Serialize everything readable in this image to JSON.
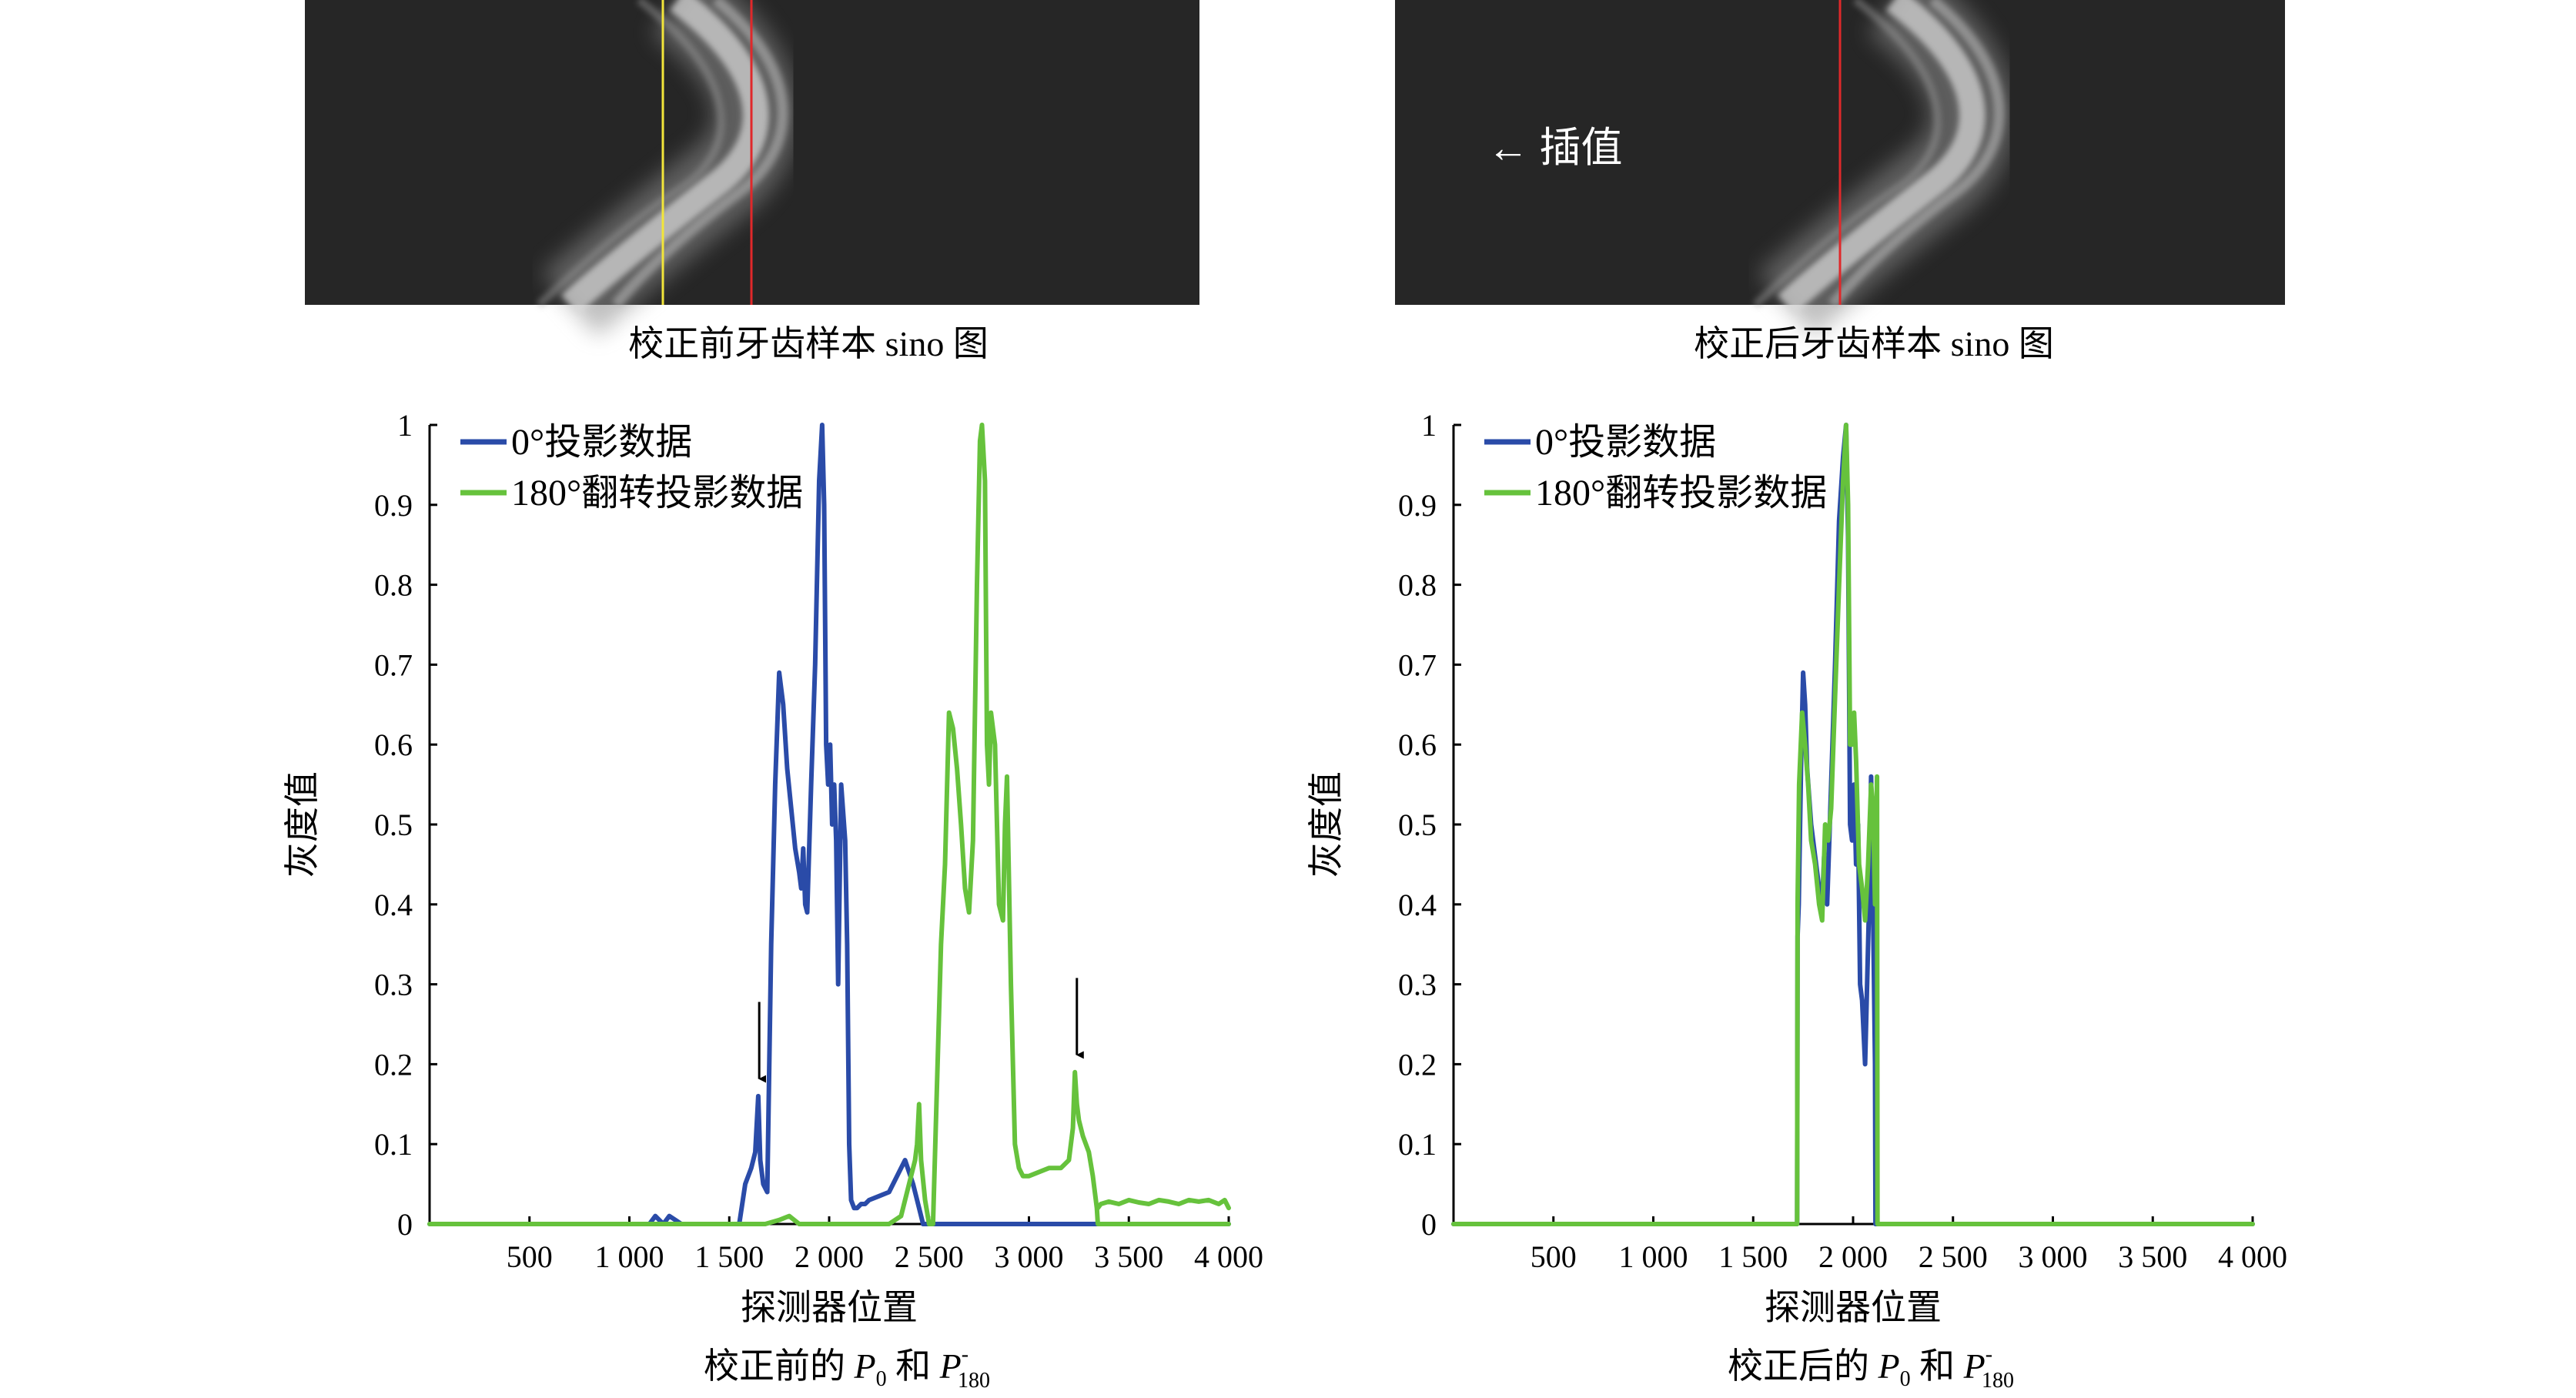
{
  "colors": {
    "blue": "#2a4ba8",
    "green": "#66c23c",
    "sino_bg": "#262626",
    "yellow_line": "#f2e53a",
    "red_line": "#e0282a"
  },
  "panels": {
    "left_image": {
      "caption": "校正前牙齿样本 sino 图"
    },
    "right_image": {
      "caption": "校正后牙齿样本 sino 图",
      "annotation": "← 插值"
    },
    "left_chart": {
      "caption_prefix": "校正前的 ",
      "caption_mid": " 和 "
    },
    "right_chart": {
      "caption_prefix": "校正后的 ",
      "caption_mid": " 和 "
    },
    "math": {
      "p": "P",
      "sub0": "0",
      "sup": "-",
      "sub180": "180"
    }
  },
  "chart_data": [
    {
      "type": "line",
      "xlabel": "探测器位置",
      "ylabel": "灰度值",
      "xlim": [
        0,
        4000
      ],
      "ylim": [
        0,
        1
      ],
      "xticks": [
        500,
        1000,
        1500,
        2000,
        2500,
        3000,
        3500,
        4000
      ],
      "xtick_labels": [
        "500",
        "1 000",
        "1 500",
        "2 000",
        "2 500",
        "3 000",
        "3 500",
        "4 000"
      ],
      "yticks": [
        0,
        0.1,
        0.2,
        0.3,
        0.4,
        0.5,
        0.6,
        0.7,
        0.8,
        0.9,
        1
      ],
      "ytick_labels": [
        "0",
        "0.1",
        "0.2",
        "0.3",
        "0.4",
        "0.5",
        "0.6",
        "0.7",
        "0.8",
        "0.9",
        "1"
      ],
      "legend_position": "top-left",
      "annotations": [
        {
          "type": "arrow",
          "x": 1650,
          "y": 0.17
        },
        {
          "type": "arrow",
          "x": 3240,
          "y": 0.2
        }
      ],
      "series": [
        {
          "name": "0°投影数据",
          "color": "#2a4ba8",
          "x": [
            0,
            1100,
            1130,
            1170,
            1200,
            1230,
            1260,
            1550,
            1580,
            1610,
            1630,
            1645,
            1655,
            1670,
            1690,
            1710,
            1730,
            1750,
            1770,
            1790,
            1810,
            1830,
            1850,
            1860,
            1870,
            1880,
            1890,
            1910,
            1930,
            1950,
            1965,
            1975,
            1985,
            1995,
            2005,
            2015,
            2025,
            2035,
            2045,
            2060,
            2080,
            2090,
            2100,
            2110,
            2125,
            2140,
            2160,
            2180,
            2200,
            2300,
            2380,
            2420,
            2450,
            2470,
            2490,
            2500,
            2600,
            4000
          ],
          "y": [
            0,
            0,
            0.01,
            0,
            0.01,
            0.005,
            0,
            0,
            0.05,
            0.07,
            0.09,
            0.16,
            0.08,
            0.05,
            0.04,
            0.35,
            0.55,
            0.69,
            0.65,
            0.57,
            0.52,
            0.47,
            0.44,
            0.42,
            0.47,
            0.4,
            0.39,
            0.55,
            0.7,
            0.93,
            1.0,
            0.9,
            0.6,
            0.55,
            0.6,
            0.5,
            0.55,
            0.48,
            0.3,
            0.55,
            0.48,
            0.35,
            0.1,
            0.03,
            0.02,
            0.02,
            0.025,
            0.025,
            0.03,
            0.04,
            0.08,
            0.05,
            0.02,
            0,
            0,
            0,
            0,
            0
          ]
        },
        {
          "name": "180°翻转投影数据",
          "color": "#66c23c",
          "x": [
            0,
            1680,
            1750,
            1800,
            1850,
            2300,
            2360,
            2400,
            2430,
            2440,
            2450,
            2460,
            2480,
            2500,
            2510,
            2520,
            2560,
            2580,
            2600,
            2620,
            2640,
            2660,
            2680,
            2700,
            2720,
            2740,
            2755,
            2765,
            2780,
            2790,
            2800,
            2810,
            2830,
            2850,
            2870,
            2880,
            2890,
            2910,
            2930,
            2950,
            2970,
            3000,
            3100,
            3160,
            3200,
            3220,
            3230,
            3240,
            3250,
            3270,
            3300,
            3320,
            3330,
            3340,
            3345,
            3350,
            3400,
            3500,
            3600,
            3700,
            3800,
            3900,
            3950,
            3990,
            4000
          ],
          "y": [
            0,
            0,
            0.005,
            0.01,
            0,
            0,
            0.01,
            0.05,
            0.08,
            0.1,
            0.15,
            0.08,
            0.03,
            0,
            0,
            0,
            0.35,
            0.45,
            0.64,
            0.62,
            0.57,
            0.5,
            0.42,
            0.39,
            0.48,
            0.8,
            0.98,
            1.0,
            0.93,
            0.6,
            0.55,
            0.64,
            0.6,
            0.4,
            0.38,
            0.5,
            0.56,
            0.3,
            0.1,
            0.07,
            0.06,
            0.06,
            0.07,
            0.07,
            0.08,
            0.12,
            0.19,
            0.15,
            0.13,
            0.11,
            0.09,
            0.06,
            0.04,
            0.02,
            0,
            0,
            0,
            0,
            0,
            0,
            0,
            0,
            0,
            0,
            0
          ]
        },
        {
          "name": "",
          "color": "#66c23c",
          "x": [
            3345,
            3360,
            3400,
            3450,
            3500,
            3550,
            3600,
            3650,
            3700,
            3750,
            3800,
            3850,
            3900,
            3950,
            3980,
            4000
          ],
          "y": [
            0.02,
            0.025,
            0.028,
            0.025,
            0.03,
            0.027,
            0.025,
            0.03,
            0.028,
            0.025,
            0.03,
            0.028,
            0.03,
            0.025,
            0.03,
            0.02
          ]
        }
      ]
    },
    {
      "type": "line",
      "xlabel": "探测器位置",
      "ylabel": "灰度值",
      "xlim": [
        0,
        4000
      ],
      "ylim": [
        0,
        1
      ],
      "xticks": [
        500,
        1000,
        1500,
        2000,
        2500,
        3000,
        3500,
        4000
      ],
      "xtick_labels": [
        "500",
        "1 000",
        "1 500",
        "2 000",
        "2 500",
        "3 000",
        "3 500",
        "4 000"
      ],
      "yticks": [
        0,
        0.1,
        0.2,
        0.3,
        0.4,
        0.5,
        0.6,
        0.7,
        0.8,
        0.9,
        1
      ],
      "ytick_labels": [
        "0",
        "0.1",
        "0.2",
        "0.3",
        "0.4",
        "0.5",
        "0.6",
        "0.7",
        "0.8",
        "0.9",
        "1"
      ],
      "legend_position": "top-left",
      "series": [
        {
          "name": "0°投影数据",
          "color": "#2a4ba8",
          "x": [
            0,
            1720,
            1722,
            1728,
            1740,
            1750,
            1760,
            1770,
            1790,
            1810,
            1830,
            1845,
            1855,
            1870,
            1890,
            1910,
            1930,
            1950,
            1965,
            1975,
            1985,
            1995,
            2005,
            2015,
            2025,
            2035,
            2045,
            2060,
            2080,
            2090,
            2100,
            2110,
            2112,
            4000
          ],
          "y": [
            0,
            0,
            0.36,
            0.4,
            0.58,
            0.69,
            0.65,
            0.57,
            0.5,
            0.46,
            0.42,
            0.4,
            0.46,
            0.4,
            0.55,
            0.7,
            0.88,
            0.96,
            1.0,
            0.86,
            0.5,
            0.48,
            0.55,
            0.45,
            0.5,
            0.3,
            0.28,
            0.2,
            0.4,
            0.56,
            0.4,
            0.2,
            0,
            0
          ]
        },
        {
          "name": "180°翻转投影数据",
          "color": "#66c23c",
          "x": [
            0,
            1720,
            1722,
            1730,
            1745,
            1760,
            1775,
            1790,
            1810,
            1830,
            1845,
            1860,
            1875,
            1890,
            1910,
            1930,
            1950,
            1965,
            1975,
            1985,
            1995,
            2005,
            2015,
            2030,
            2045,
            2060,
            2075,
            2090,
            2100,
            2110,
            2120,
            2122,
            4000
          ],
          "y": [
            0,
            0,
            0.4,
            0.55,
            0.64,
            0.6,
            0.55,
            0.48,
            0.45,
            0.4,
            0.38,
            0.5,
            0.48,
            0.52,
            0.66,
            0.8,
            0.93,
            1.0,
            0.9,
            0.6,
            0.6,
            0.64,
            0.58,
            0.45,
            0.42,
            0.38,
            0.45,
            0.55,
            0.52,
            0.4,
            0.56,
            0,
            0
          ]
        }
      ]
    }
  ]
}
